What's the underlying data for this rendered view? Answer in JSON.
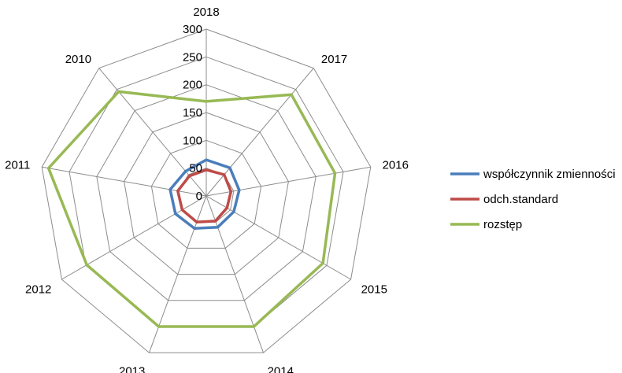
{
  "chart_data": {
    "type": "radar",
    "categories": [
      "2018",
      "2017",
      "2016",
      "2015",
      "2014",
      "2013",
      "2012",
      "2011",
      "2010"
    ],
    "r_ticks": [
      0,
      50,
      100,
      150,
      200,
      250,
      300
    ],
    "rlim": [
      0,
      300
    ],
    "grid": true,
    "legend_position": "right",
    "series": [
      {
        "name": "współczynnik zmienności",
        "color": "#4a7ebb",
        "values": [
          65,
          66,
          60,
          57,
          60,
          62,
          64,
          66,
          58
        ]
      },
      {
        "name": "odch.standard",
        "color": "#be4b48",
        "values": [
          47,
          50,
          45,
          43,
          48,
          50,
          50,
          52,
          47
        ]
      },
      {
        "name": "rozstęp",
        "color": "#98b954",
        "values": [
          170,
          238,
          235,
          242,
          250,
          250,
          248,
          288,
          245
        ]
      }
    ]
  }
}
